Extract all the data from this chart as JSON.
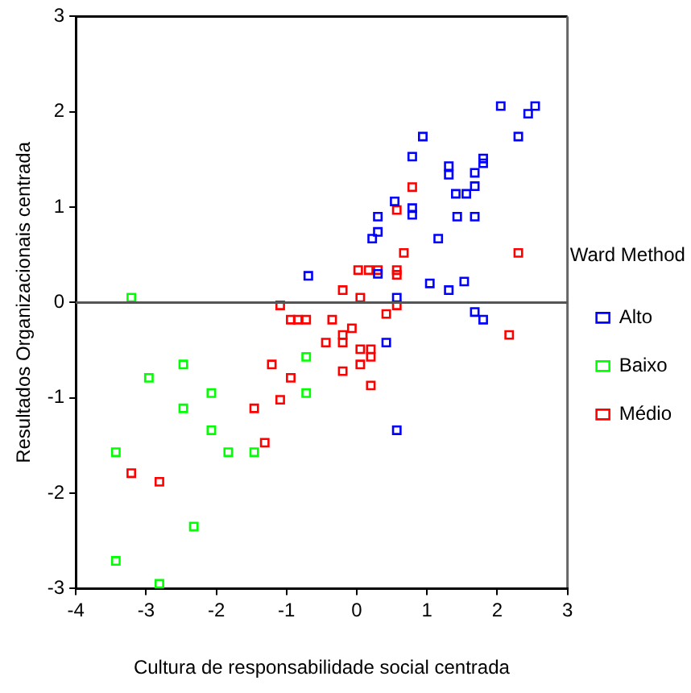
{
  "chart_data": {
    "type": "scatter",
    "xlabel": "Cultura de responsabilidade social centrada",
    "ylabel": "Resultados Organizacionais centrada",
    "legend_title": "Ward Method",
    "legend": "right",
    "marker": "square",
    "grid": false,
    "xlim": [
      -4,
      3
    ],
    "xticks": [
      -4,
      -3,
      -2,
      -1,
      0,
      1,
      2,
      3
    ],
    "ylim": [
      -3,
      3
    ],
    "yticks": [
      -3,
      -2,
      -1,
      0,
      1,
      2,
      3
    ],
    "ref_lines": [
      {
        "axis": "y",
        "value": 0,
        "color": "#555555"
      }
    ],
    "series": [
      {
        "name": "Alto",
        "color": "#0000ff",
        "x": [
          2.05,
          2.44,
          2.54,
          2.3,
          0.94,
          0.79,
          1.31,
          1.31,
          1.8,
          1.8,
          1.68,
          1.68,
          1.41,
          1.56,
          0.54,
          0.79,
          0.79,
          0.3,
          1.43,
          1.68,
          0.3,
          0.22,
          1.16,
          -0.69,
          0.3,
          1.04,
          1.31,
          1.53,
          0.57,
          1.68,
          1.8,
          0.42,
          0.57
        ],
        "values": [
          2.06,
          1.98,
          2.06,
          1.74,
          1.74,
          1.53,
          1.43,
          1.34,
          1.51,
          1.46,
          1.36,
          1.22,
          1.14,
          1.14,
          1.06,
          0.99,
          0.92,
          0.9,
          0.9,
          0.9,
          0.74,
          0.67,
          0.67,
          0.28,
          0.3,
          0.2,
          0.13,
          0.22,
          0.05,
          -0.1,
          -0.18,
          -0.42,
          -1.34
        ]
      },
      {
        "name": "Baixo",
        "color": "#00ff00",
        "x": [
          -3.21,
          -2.47,
          -2.96,
          -2.07,
          -2.47,
          -2.07,
          -3.43,
          -1.83,
          -1.46,
          -2.32,
          -3.43,
          -2.81,
          -0.72,
          -0.72
        ],
        "values": [
          0.05,
          -0.65,
          -0.79,
          -0.95,
          -1.11,
          -1.34,
          -1.57,
          -1.57,
          -1.57,
          -2.35,
          -2.71,
          -2.95,
          -0.57,
          -0.95
        ]
      },
      {
        "name": "Médio",
        "color": "#ff0000",
        "x": [
          0.79,
          0.57,
          0.67,
          2.3,
          0.02,
          0.17,
          0.3,
          0.57,
          0.57,
          -0.2,
          0.05,
          -1.09,
          -0.94,
          -0.84,
          -0.72,
          -1.21,
          -0.94,
          -1.09,
          -1.46,
          -1.31,
          -3.21,
          -2.81,
          0.42,
          0.57,
          -0.35,
          -0.07,
          -0.2,
          -0.44,
          -0.2,
          0.05,
          0.2,
          0.2,
          0.05,
          -0.2,
          0.2,
          2.17
        ],
        "values": [
          1.21,
          0.97,
          0.52,
          0.52,
          0.34,
          0.34,
          0.34,
          0.34,
          0.29,
          0.13,
          0.05,
          -0.03,
          -0.18,
          -0.18,
          -0.18,
          -0.65,
          -0.79,
          -1.02,
          -1.11,
          -1.47,
          -1.79,
          -1.88,
          -0.12,
          -0.03,
          -0.18,
          -0.27,
          -0.34,
          -0.42,
          -0.42,
          -0.49,
          -0.49,
          -0.57,
          -0.65,
          -0.72,
          -0.87,
          -0.34
        ]
      }
    ]
  }
}
